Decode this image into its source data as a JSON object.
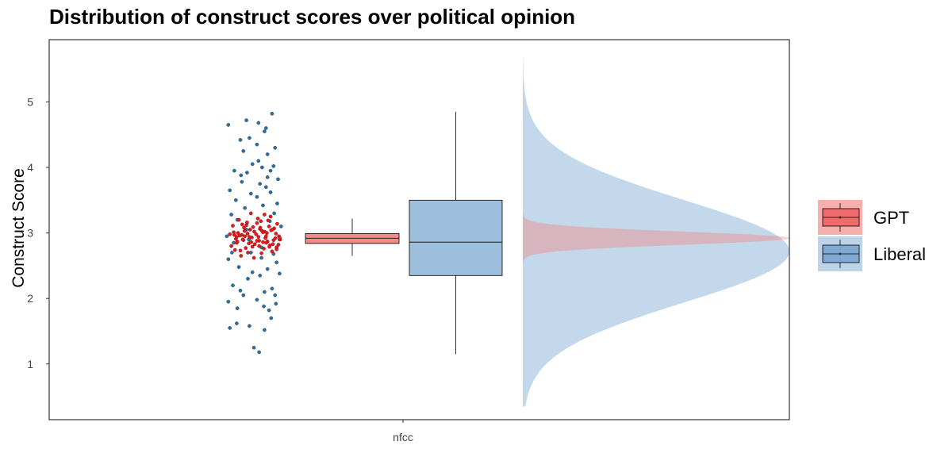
{
  "chart_data": {
    "type": "raincloud",
    "title": "Distribution of construct scores over political opinion",
    "xlabel": "",
    "ylabel": "Construct Score",
    "categories": [
      "nfcc"
    ],
    "ylim": [
      0.15,
      5.95
    ],
    "yticks": [
      1,
      2,
      3,
      4,
      5
    ],
    "grid": false,
    "legend_position": "right",
    "series": [
      {
        "name": "GPT",
        "color": "#F8766D",
        "point_color": "#E41A1C",
        "box": {
          "min": 2.65,
          "q1": 2.84,
          "median": 2.92,
          "q3": 2.99,
          "max": 3.22
        },
        "density": {
          "mean": 2.92,
          "sd": 0.1,
          "lower": 2.35,
          "upper": 3.42
        },
        "points": [
          [
            -0.62,
            2.85
          ],
          [
            -0.35,
            2.95
          ],
          [
            -0.18,
            3.05
          ],
          [
            0.12,
            2.88
          ],
          [
            0.45,
            3.1
          ],
          [
            0.7,
            2.78
          ],
          [
            -0.55,
            3.2
          ],
          [
            -0.25,
            2.7
          ],
          [
            0.05,
            3.15
          ],
          [
            0.33,
            2.92
          ],
          [
            0.58,
            2.83
          ],
          [
            -0.72,
            3.01
          ],
          [
            -0.4,
            2.89
          ],
          [
            -0.1,
            2.79
          ],
          [
            0.22,
            3.03
          ],
          [
            0.5,
            3.25
          ],
          [
            0.78,
            2.95
          ],
          [
            -0.48,
            2.65
          ],
          [
            -0.3,
            3.12
          ],
          [
            0.02,
            2.98
          ],
          [
            0.28,
            2.76
          ],
          [
            0.62,
            3.07
          ],
          [
            -0.65,
            2.91
          ],
          [
            -0.15,
            3.3
          ],
          [
            0.4,
            2.87
          ],
          [
            -0.8,
            2.8
          ],
          [
            -0.05,
            2.62
          ],
          [
            0.18,
            3.18
          ],
          [
            0.68,
            2.99
          ],
          [
            -0.38,
            3.08
          ],
          [
            0.1,
            2.94
          ],
          [
            0.55,
            2.72
          ],
          [
            -0.58,
            3.0
          ],
          [
            -0.22,
            2.84
          ],
          [
            0.3,
            3.02
          ],
          [
            0.82,
            2.9
          ],
          [
            -0.45,
            2.97
          ],
          [
            0.08,
            3.22
          ],
          [
            0.48,
            2.81
          ],
          [
            -0.68,
            2.74
          ],
          [
            -0.12,
            2.93
          ],
          [
            0.25,
            2.86
          ],
          [
            0.72,
            3.14
          ],
          [
            -0.32,
            2.77
          ],
          [
            0.15,
            3.06
          ],
          [
            -0.52,
            2.96
          ],
          [
            0.38,
            3.0
          ],
          [
            0.6,
            2.89
          ],
          [
            -0.75,
            3.11
          ],
          [
            -0.02,
            2.83
          ],
          [
            0.2,
            2.69
          ],
          [
            -0.42,
            2.9
          ],
          [
            0.52,
            3.04
          ],
          [
            -0.28,
            3.16
          ],
          [
            0.35,
            2.95
          ],
          [
            -0.6,
            2.87
          ],
          [
            0.76,
            2.82
          ],
          [
            -0.08,
            3.09
          ],
          [
            0.42,
            3.19
          ],
          [
            -0.85,
            2.98
          ],
          [
            0.12,
            2.8
          ],
          [
            -0.36,
            3.03
          ],
          [
            0.66,
            2.92
          ],
          [
            -0.2,
            2.94
          ],
          [
            0.05,
            2.88
          ],
          [
            0.3,
            3.28
          ],
          [
            -0.5,
            2.73
          ],
          [
            0.56,
            3.05
          ],
          [
            -0.7,
            2.97
          ],
          [
            0.25,
            3.01
          ],
          [
            -0.14,
            2.86
          ],
          [
            0.8,
            2.93
          ],
          [
            -0.44,
            3.13
          ],
          [
            0.46,
            2.79
          ],
          [
            -0.26,
            2.99
          ],
          [
            0.16,
            3.08
          ],
          [
            -0.62,
            2.94
          ],
          [
            0.36,
            2.85
          ],
          [
            -0.04,
            3.02
          ],
          [
            0.7,
            2.75
          ]
        ]
      },
      {
        "name": "Liberal",
        "color": "#377EB8",
        "point_color": "#2F6F9F",
        "box": {
          "min": 1.15,
          "q1": 2.35,
          "median": 2.86,
          "q3": 3.5,
          "max": 4.85
        },
        "density": {
          "mean": 2.72,
          "sd": 0.78,
          "lower": 0.35,
          "upper": 5.68
        },
        "points": [
          [
            -0.9,
            4.65
          ],
          [
            -0.3,
            4.72
          ],
          [
            0.1,
            4.68
          ],
          [
            0.55,
            4.82
          ],
          [
            -0.5,
            4.42
          ],
          [
            -0.2,
            4.45
          ],
          [
            0.3,
            4.55
          ],
          [
            -0.7,
            3.95
          ],
          [
            -0.1,
            4.05
          ],
          [
            0.22,
            4.0
          ],
          [
            0.6,
            4.02
          ],
          [
            0.4,
            4.2
          ],
          [
            0.1,
            4.1
          ],
          [
            0.5,
            3.95
          ],
          [
            -0.45,
            3.78
          ],
          [
            0.15,
            3.75
          ],
          [
            0.75,
            3.82
          ],
          [
            -0.15,
            3.6
          ],
          [
            0.35,
            3.7
          ],
          [
            -0.65,
            3.5
          ],
          [
            0.05,
            3.55
          ],
          [
            0.5,
            3.62
          ],
          [
            -0.35,
            3.38
          ],
          [
            0.25,
            3.42
          ],
          [
            -0.8,
            3.28
          ],
          [
            0.62,
            3.3
          ],
          [
            -0.95,
            2.95
          ],
          [
            0.8,
            2.9
          ],
          [
            -0.9,
            2.6
          ],
          [
            0.7,
            2.55
          ],
          [
            -0.55,
            2.48
          ],
          [
            0.4,
            2.45
          ],
          [
            -0.25,
            2.3
          ],
          [
            0.15,
            2.35
          ],
          [
            -0.75,
            2.2
          ],
          [
            0.55,
            2.15
          ],
          [
            -0.4,
            2.05
          ],
          [
            0.3,
            2.1
          ],
          [
            -0.9,
            1.95
          ],
          [
            0.05,
            1.98
          ],
          [
            0.68,
            1.92
          ],
          [
            -0.6,
            1.85
          ],
          [
            0.45,
            1.82
          ],
          [
            -0.85,
            1.55
          ],
          [
            -0.2,
            1.58
          ],
          [
            0.3,
            1.52
          ],
          [
            -0.05,
            1.25
          ],
          [
            0.12,
            1.18
          ],
          [
            -0.4,
            4.25
          ],
          [
            0.65,
            4.3
          ],
          [
            -0.6,
            3.2
          ],
          [
            0.48,
            3.18
          ],
          [
            -0.3,
            3.05
          ],
          [
            0.85,
            3.1
          ],
          [
            -0.72,
            2.85
          ],
          [
            0.2,
            2.78
          ],
          [
            -0.15,
            2.7
          ],
          [
            0.6,
            2.68
          ],
          [
            -0.5,
            2.12
          ],
          [
            0.2,
            2.62
          ],
          [
            -0.85,
            3.65
          ],
          [
            0.72,
            3.45
          ],
          [
            -0.28,
            3.92
          ],
          [
            0.4,
            3.85
          ],
          [
            -0.62,
            1.62
          ],
          [
            0.52,
            1.7
          ],
          [
            -0.1,
            2.4
          ],
          [
            0.8,
            2.38
          ],
          [
            -0.78,
            2.7
          ],
          [
            0.28,
            1.88
          ],
          [
            -0.48,
            3.88
          ],
          [
            0.05,
            4.35
          ],
          [
            0.35,
            4.6
          ],
          [
            -0.22,
            2.9
          ],
          [
            0.65,
            2.05
          ]
        ]
      }
    ]
  }
}
